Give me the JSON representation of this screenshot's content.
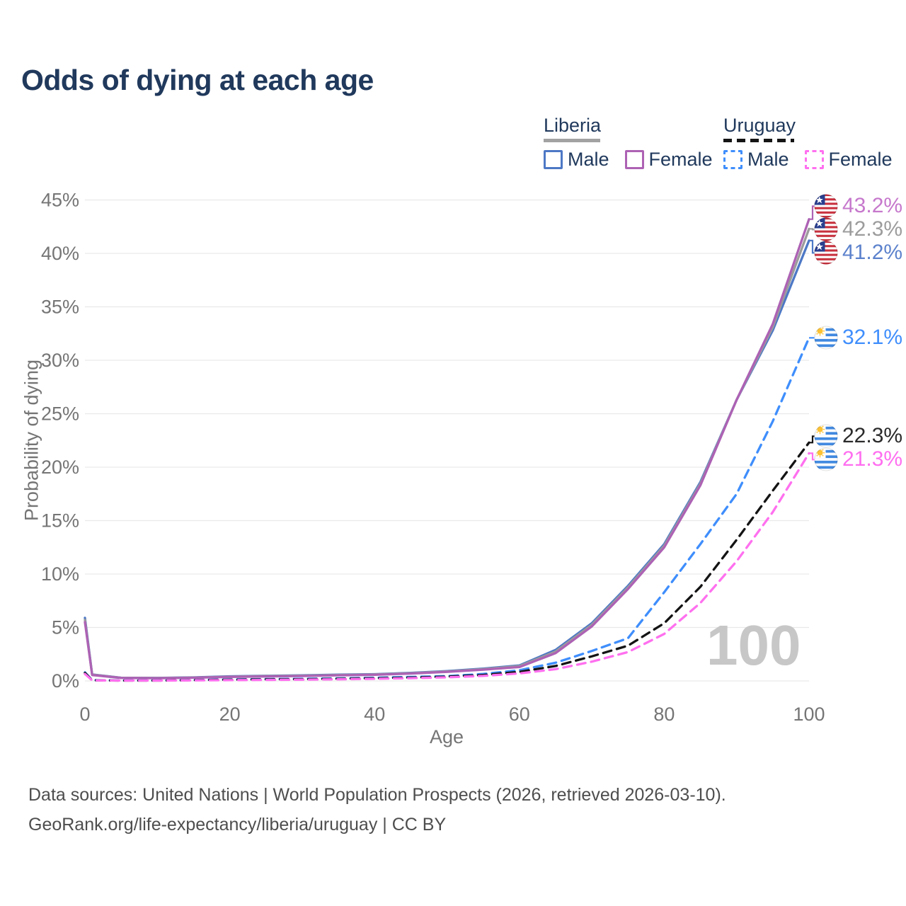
{
  "title": "Odds of dying at each age",
  "legend": {
    "groups": [
      {
        "name": "Liberia",
        "line_style": "solid",
        "underline_color": "#a2a2a2",
        "items": [
          {
            "label": "Male",
            "color": "#4d78c5"
          },
          {
            "label": "Female",
            "color": "#ad62b4"
          }
        ]
      },
      {
        "name": "Uruguay",
        "line_style": "dashed",
        "underline_color": "#151515",
        "items": [
          {
            "label": "Male",
            "color": "#3f8efc"
          },
          {
            "label": "Female",
            "color": "#ff70ef"
          }
        ]
      }
    ]
  },
  "chart_data": {
    "type": "line",
    "xlabel": "Age",
    "ylabel": "Probability of dying",
    "xlim": [
      0,
      100
    ],
    "ylim": [
      0,
      45
    ],
    "x_ticks": [
      0,
      20,
      40,
      60,
      80,
      100
    ],
    "y_ticks_percent": [
      0,
      5,
      10,
      15,
      20,
      25,
      30,
      35,
      40,
      45
    ],
    "grid": "horizontal",
    "watermark": "100",
    "series": [
      {
        "id": "liberia-male",
        "country": "Liberia",
        "sex": "Male",
        "style": "solid",
        "color": "#4d78c5",
        "points": [
          [
            0,
            5.9
          ],
          [
            1,
            0.6
          ],
          [
            5,
            0.3
          ],
          [
            10,
            0.28
          ],
          [
            15,
            0.33
          ],
          [
            20,
            0.43
          ],
          [
            25,
            0.48
          ],
          [
            30,
            0.52
          ],
          [
            35,
            0.58
          ],
          [
            40,
            0.63
          ],
          [
            45,
            0.75
          ],
          [
            50,
            0.92
          ],
          [
            55,
            1.15
          ],
          [
            60,
            1.45
          ],
          [
            65,
            2.9
          ],
          [
            70,
            5.4
          ],
          [
            75,
            8.9
          ],
          [
            80,
            12.8
          ],
          [
            85,
            18.6
          ],
          [
            90,
            26.3
          ],
          [
            95,
            32.8
          ],
          [
            100,
            41.2
          ]
        ]
      },
      {
        "id": "liberia-both",
        "country": "Liberia",
        "sex": "Both",
        "style": "solid",
        "color": "#9c9c9c",
        "points": [
          [
            0,
            5.7
          ],
          [
            1,
            0.58
          ],
          [
            5,
            0.29
          ],
          [
            10,
            0.27
          ],
          [
            15,
            0.31
          ],
          [
            20,
            0.4
          ],
          [
            25,
            0.45
          ],
          [
            30,
            0.49
          ],
          [
            35,
            0.55
          ],
          [
            40,
            0.6
          ],
          [
            45,
            0.72
          ],
          [
            50,
            0.88
          ],
          [
            55,
            1.1
          ],
          [
            60,
            1.38
          ],
          [
            65,
            2.75
          ],
          [
            70,
            5.25
          ],
          [
            75,
            8.75
          ],
          [
            80,
            12.65
          ],
          [
            85,
            18.45
          ],
          [
            90,
            26.3
          ],
          [
            95,
            33.1
          ],
          [
            100,
            42.3
          ]
        ]
      },
      {
        "id": "liberia-female",
        "country": "Liberia",
        "sex": "Female",
        "style": "solid",
        "color": "#ad62b4",
        "points": [
          [
            0,
            5.5
          ],
          [
            1,
            0.55
          ],
          [
            5,
            0.28
          ],
          [
            10,
            0.25
          ],
          [
            15,
            0.3
          ],
          [
            20,
            0.38
          ],
          [
            25,
            0.42
          ],
          [
            30,
            0.46
          ],
          [
            35,
            0.52
          ],
          [
            40,
            0.57
          ],
          [
            45,
            0.69
          ],
          [
            50,
            0.85
          ],
          [
            55,
            1.05
          ],
          [
            60,
            1.3
          ],
          [
            65,
            2.6
          ],
          [
            70,
            5.1
          ],
          [
            75,
            8.6
          ],
          [
            80,
            12.5
          ],
          [
            85,
            18.3
          ],
          [
            90,
            26.3
          ],
          [
            95,
            33.4
          ],
          [
            100,
            43.2
          ]
        ]
      },
      {
        "id": "uruguay-male",
        "country": "Uruguay",
        "sex": "Male",
        "style": "dashed",
        "color": "#3f8efc",
        "points": [
          [
            0,
            0.8
          ],
          [
            1,
            0.07
          ],
          [
            5,
            0.04
          ],
          [
            10,
            0.04
          ],
          [
            15,
            0.08
          ],
          [
            20,
            0.14
          ],
          [
            25,
            0.17
          ],
          [
            30,
            0.2
          ],
          [
            35,
            0.24
          ],
          [
            40,
            0.3
          ],
          [
            45,
            0.37
          ],
          [
            50,
            0.45
          ],
          [
            55,
            0.65
          ],
          [
            60,
            1.0
          ],
          [
            65,
            1.7
          ],
          [
            70,
            2.8
          ],
          [
            75,
            4.0
          ],
          [
            80,
            8.3
          ],
          [
            85,
            12.8
          ],
          [
            90,
            17.5
          ],
          [
            95,
            24.3
          ],
          [
            100,
            32.1
          ]
        ]
      },
      {
        "id": "uruguay-both",
        "country": "Uruguay",
        "sex": "Both",
        "style": "dashed",
        "color": "#141414",
        "points": [
          [
            0,
            0.75
          ],
          [
            1,
            0.06
          ],
          [
            5,
            0.035
          ],
          [
            10,
            0.035
          ],
          [
            15,
            0.07
          ],
          [
            20,
            0.11
          ],
          [
            25,
            0.14
          ],
          [
            30,
            0.16
          ],
          [
            35,
            0.2
          ],
          [
            40,
            0.25
          ],
          [
            45,
            0.31
          ],
          [
            50,
            0.4
          ],
          [
            55,
            0.55
          ],
          [
            60,
            0.85
          ],
          [
            65,
            1.4
          ],
          [
            70,
            2.3
          ],
          [
            75,
            3.3
          ],
          [
            80,
            5.4
          ],
          [
            85,
            8.8
          ],
          [
            90,
            13.2
          ],
          [
            95,
            17.8
          ],
          [
            100,
            22.3
          ]
        ]
      },
      {
        "id": "uruguay-female",
        "country": "Uruguay",
        "sex": "Female",
        "style": "dashed",
        "color": "#ff70ef",
        "points": [
          [
            0,
            0.65
          ],
          [
            1,
            0.05
          ],
          [
            5,
            0.03
          ],
          [
            10,
            0.03
          ],
          [
            15,
            0.05
          ],
          [
            20,
            0.07
          ],
          [
            25,
            0.09
          ],
          [
            30,
            0.12
          ],
          [
            35,
            0.15
          ],
          [
            40,
            0.2
          ],
          [
            45,
            0.26
          ],
          [
            50,
            0.34
          ],
          [
            55,
            0.47
          ],
          [
            60,
            0.7
          ],
          [
            65,
            1.1
          ],
          [
            70,
            1.8
          ],
          [
            75,
            2.7
          ],
          [
            80,
            4.4
          ],
          [
            85,
            7.3
          ],
          [
            90,
            11.2
          ],
          [
            95,
            15.8
          ],
          [
            100,
            21.3
          ]
        ]
      }
    ],
    "end_labels": [
      {
        "text": "43.2%",
        "series": "liberia-female",
        "flag": "liberia",
        "color": "#c678cc",
        "value_pct": 43.2
      },
      {
        "text": "42.3%",
        "series": "liberia-both",
        "flag": "liberia",
        "color": "#9c9c9c",
        "value_pct": 42.3
      },
      {
        "text": "41.2%",
        "series": "liberia-male",
        "flag": "liberia",
        "color": "#5c82cc",
        "value_pct": 41.2
      },
      {
        "text": "32.1%",
        "series": "uruguay-male",
        "flag": "uruguay",
        "color": "#3f8efc",
        "value_pct": 32.1
      },
      {
        "text": "22.3%",
        "series": "uruguay-both",
        "flag": "uruguay",
        "color": "#2a2a2a",
        "value_pct": 22.3
      },
      {
        "text": "21.3%",
        "series": "uruguay-female",
        "flag": "uruguay",
        "color": "#ff6ef0",
        "value_pct": 21.3
      }
    ]
  },
  "footer": {
    "line1": "Data sources: United Nations | World Population Prospects (2026, retrieved 2026-03-10).",
    "line2": "GeoRank.org/life-expectancy/liberia/uruguay | CC BY"
  }
}
